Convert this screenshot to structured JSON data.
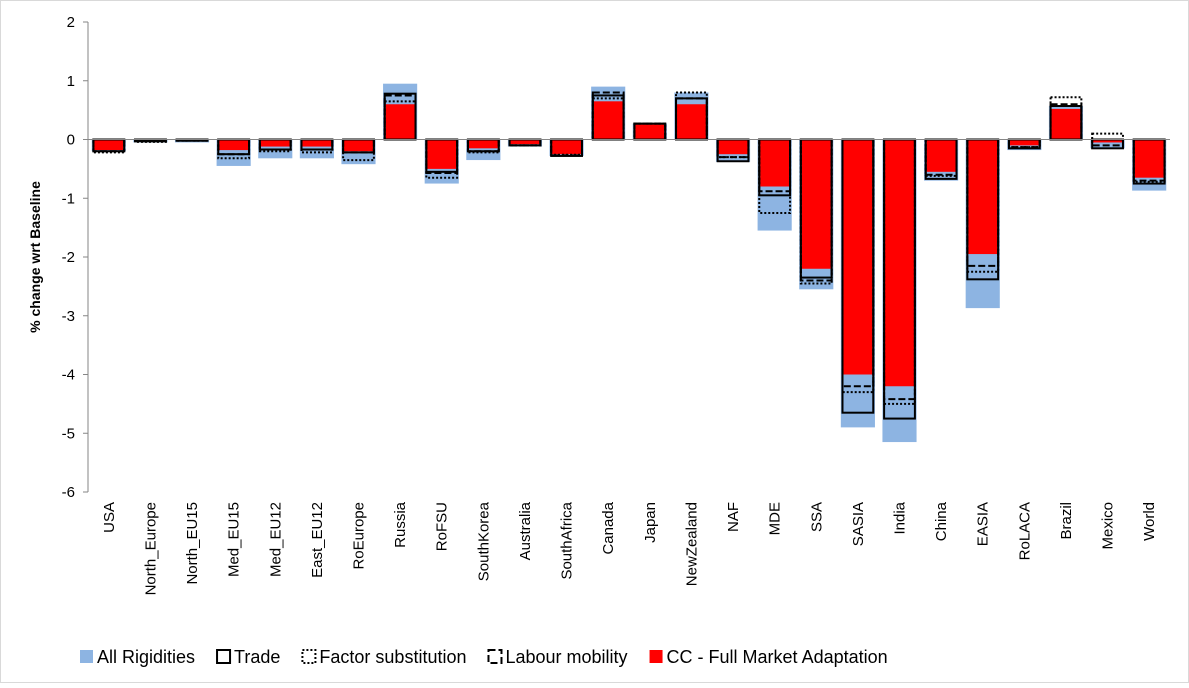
{
  "chart_data": {
    "type": "bar",
    "ylabel": "% change wrt Baseline",
    "categories": [
      "USA",
      "North_Europe",
      "North_EU15",
      "Med_EU15",
      "Med_EU12",
      "East_EU12",
      "RoEurope",
      "Russia",
      "RoFSU",
      "SouthKorea",
      "Australia",
      "SouthAfrica",
      "Canada",
      "Japan",
      "NewZealand",
      "NAF",
      "MDE",
      "SSA",
      "SASIA",
      "India",
      "China",
      "EASIA",
      "RoLACA",
      "Brazil",
      "Mexico",
      "World"
    ],
    "series": [
      {
        "name": "All Rigidities",
        "color": "#8db4e2",
        "style": "fill",
        "values": [
          -0.2,
          -0.05,
          -0.05,
          -0.45,
          -0.32,
          -0.32,
          -0.42,
          0.95,
          -0.75,
          -0.35,
          -0.12,
          -0.28,
          0.9,
          0.27,
          0.8,
          -0.38,
          -1.55,
          -2.55,
          -4.9,
          -5.15,
          -0.7,
          -2.87,
          -0.18,
          0.57,
          -0.15,
          -0.87
        ]
      },
      {
        "name": "CC - Full Market Adaptation",
        "color": "#ff0000",
        "style": "fill",
        "values": [
          -0.18,
          -0.03,
          -0.02,
          -0.18,
          -0.12,
          -0.12,
          -0.2,
          0.6,
          -0.5,
          -0.15,
          -0.08,
          -0.25,
          0.65,
          0.27,
          0.6,
          -0.25,
          -0.8,
          -2.2,
          -4.0,
          -4.2,
          -0.55,
          -1.95,
          -0.1,
          0.52,
          -0.05,
          -0.65
        ]
      },
      {
        "name": "Trade",
        "color": "#000000",
        "style": "solid",
        "values": [
          -0.2,
          -0.03,
          -0.02,
          -0.25,
          -0.17,
          -0.17,
          -0.22,
          0.78,
          -0.55,
          -0.2,
          -0.1,
          -0.28,
          0.75,
          0.27,
          0.7,
          -0.37,
          -0.95,
          -2.35,
          -4.65,
          -4.75,
          -0.67,
          -2.38,
          -0.15,
          0.57,
          -0.15,
          -0.75
        ]
      },
      {
        "name": "Factor substitution",
        "color": "#000000",
        "style": "dotted",
        "values": [
          -0.22,
          -0.04,
          -0.02,
          -0.32,
          -0.2,
          -0.22,
          -0.35,
          0.65,
          -0.65,
          -0.22,
          -0.1,
          -0.26,
          0.7,
          0.27,
          0.8,
          -0.3,
          -1.25,
          -2.45,
          -4.3,
          -4.5,
          -0.62,
          -2.25,
          -0.13,
          0.72,
          0.1,
          -0.72
        ]
      },
      {
        "name": "Labour mobility",
        "color": "#000000",
        "style": "dashed",
        "values": [
          -0.2,
          -0.03,
          -0.02,
          -0.25,
          -0.17,
          -0.17,
          -0.22,
          0.75,
          -0.57,
          -0.2,
          -0.1,
          -0.27,
          0.8,
          0.27,
          0.7,
          -0.3,
          -0.88,
          -2.4,
          -4.2,
          -4.42,
          -0.6,
          -2.15,
          -0.13,
          0.6,
          -0.1,
          -0.7
        ]
      }
    ],
    "legend_order": [
      0,
      2,
      3,
      4,
      1
    ],
    "ylim": [
      -6,
      2
    ],
    "yticks": [
      -6,
      -5,
      -4,
      -3,
      -2,
      -1,
      0,
      1,
      2
    ]
  }
}
